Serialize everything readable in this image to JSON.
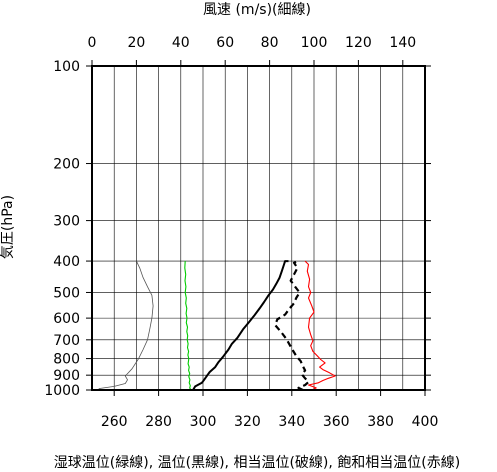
{
  "chart_data": {
    "type": "line",
    "top_axis_label": "風速 (m/s)(細線)",
    "ylabel": "気圧(hPa)",
    "xlabel": "湿球温位(緑線), 温位(黒線), 相当温位(破線), 飽和相当温位(赤線)",
    "xlim": [
      250,
      400
    ],
    "top_xlim": [
      0,
      150
    ],
    "ylim": [
      1000,
      100
    ],
    "y_scale": "log",
    "grid": true,
    "x_ticks": [
      260,
      280,
      300,
      320,
      340,
      360,
      380,
      400
    ],
    "top_ticks": [
      0,
      20,
      40,
      60,
      80,
      100,
      120,
      140
    ],
    "y_ticks": [
      100,
      200,
      300,
      400,
      500,
      600,
      700,
      800,
      900,
      1000
    ],
    "series": [
      {
        "name": "湿球温位",
        "color": "#00cc00",
        "style": "solid",
        "axis": "bottom",
        "points": [
          [
            294.6,
            1000
          ],
          [
            294.0,
            985
          ],
          [
            294.3,
            970
          ],
          [
            293.8,
            950
          ],
          [
            294.1,
            930
          ],
          [
            293.6,
            910
          ],
          [
            294.0,
            890
          ],
          [
            293.5,
            870
          ],
          [
            293.8,
            850
          ],
          [
            293.3,
            830
          ],
          [
            293.6,
            800
          ],
          [
            293.2,
            780
          ],
          [
            293.5,
            760
          ],
          [
            293.0,
            740
          ],
          [
            293.3,
            720
          ],
          [
            292.9,
            700
          ],
          [
            293.1,
            680
          ],
          [
            292.7,
            660
          ],
          [
            293.0,
            640
          ],
          [
            292.5,
            620
          ],
          [
            292.8,
            600
          ],
          [
            292.4,
            580
          ],
          [
            292.7,
            560
          ],
          [
            292.2,
            540
          ],
          [
            292.5,
            520
          ],
          [
            292.0,
            500
          ],
          [
            292.3,
            480
          ],
          [
            291.9,
            460
          ],
          [
            292.2,
            440
          ],
          [
            291.8,
            420
          ],
          [
            292.0,
            400
          ]
        ]
      },
      {
        "name": "温位",
        "color": "#000000",
        "style": "solid",
        "axis": "bottom",
        "points": [
          [
            295.5,
            1000
          ],
          [
            296.5,
            975
          ],
          [
            299.5,
            950
          ],
          [
            300.5,
            930
          ],
          [
            302,
            900
          ],
          [
            303,
            880
          ],
          [
            305.5,
            850
          ],
          [
            307,
            820
          ],
          [
            309,
            790
          ],
          [
            311.5,
            750
          ],
          [
            313,
            720
          ],
          [
            315.5,
            690
          ],
          [
            318,
            650
          ],
          [
            320.5,
            620
          ],
          [
            323,
            590
          ],
          [
            325.5,
            560
          ],
          [
            327.5,
            535
          ],
          [
            329.5,
            510
          ],
          [
            331.5,
            490
          ],
          [
            333,
            470
          ],
          [
            334.5,
            450
          ],
          [
            335.5,
            430
          ],
          [
            336.5,
            410
          ],
          [
            337,
            400
          ],
          [
            338.5,
            400
          ]
        ]
      },
      {
        "name": "相当温位",
        "color": "#000000",
        "style": "dashed",
        "axis": "bottom",
        "points": [
          [
            345,
            1000
          ],
          [
            343,
            985
          ],
          [
            346,
            965
          ],
          [
            347.5,
            945
          ],
          [
            346,
            920
          ],
          [
            344.5,
            895
          ],
          [
            346,
            870
          ],
          [
            345,
            845
          ],
          [
            344,
            815
          ],
          [
            342,
            785
          ],
          [
            340.5,
            755
          ],
          [
            339,
            725
          ],
          [
            337.5,
            695
          ],
          [
            335,
            660
          ],
          [
            332.5,
            630
          ],
          [
            333.5,
            605
          ],
          [
            337,
            585
          ],
          [
            339,
            560
          ],
          [
            341,
            540
          ],
          [
            342,
            520
          ],
          [
            343.5,
            500
          ],
          [
            341.5,
            480
          ],
          [
            339.5,
            460
          ],
          [
            341,
            440
          ],
          [
            342.5,
            420
          ],
          [
            341,
            405
          ],
          [
            343,
            400
          ]
        ]
      },
      {
        "name": "飽和相当温位",
        "color": "#ff0000",
        "style": "solid",
        "axis": "bottom",
        "points": [
          [
            349,
            1000
          ],
          [
            351,
            985
          ],
          [
            347.5,
            965
          ],
          [
            352,
            950
          ],
          [
            354,
            935
          ],
          [
            356.5,
            920
          ],
          [
            359.5,
            905
          ],
          [
            357,
            885
          ],
          [
            354,
            865
          ],
          [
            352.5,
            850
          ],
          [
            355,
            825
          ],
          [
            353,
            805
          ],
          [
            351.5,
            785
          ],
          [
            349.5,
            760
          ],
          [
            348.5,
            730
          ],
          [
            349.5,
            705
          ],
          [
            348.5,
            675
          ],
          [
            347.5,
            640
          ],
          [
            348,
            600
          ],
          [
            350,
            575
          ],
          [
            349,
            550
          ],
          [
            347.5,
            520
          ],
          [
            348.5,
            500
          ],
          [
            347.5,
            480
          ],
          [
            348,
            455
          ],
          [
            347,
            430
          ],
          [
            347.5,
            410
          ],
          [
            346,
            400
          ]
        ]
      },
      {
        "name": "風速",
        "color": "#555555",
        "style": "thin",
        "axis": "top",
        "points": [
          [
            3,
            990
          ],
          [
            10,
            975
          ],
          [
            15,
            955
          ],
          [
            16,
            930
          ],
          [
            15,
            905
          ],
          [
            18,
            860
          ],
          [
            21,
            800
          ],
          [
            23,
            750
          ],
          [
            25,
            700
          ],
          [
            26,
            650
          ],
          [
            27,
            600
          ],
          [
            27.5,
            550
          ],
          [
            27,
            510
          ],
          [
            25,
            480
          ],
          [
            23,
            450
          ],
          [
            21.5,
            420
          ],
          [
            20,
            400
          ]
        ]
      }
    ]
  }
}
